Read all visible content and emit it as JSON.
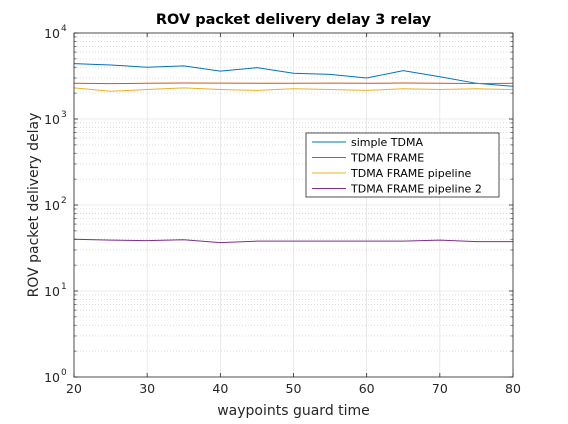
{
  "chart_data": {
    "type": "line",
    "title": "ROV packet delivery delay 3 relay",
    "xlabel": "waypoints guard time",
    "ylabel": "ROV packet delivery delay",
    "xlim": [
      20,
      80
    ],
    "ylim": [
      1,
      10000
    ],
    "y_scale": "log",
    "grid": true,
    "minor_grid": true,
    "legend_position": "right-center",
    "x_ticks": [
      20,
      30,
      40,
      50,
      60,
      70,
      80
    ],
    "y_ticks": [
      {
        "base": "10",
        "exp": "0",
        "value": 1
      },
      {
        "base": "10",
        "exp": "1",
        "value": 10
      },
      {
        "base": "10",
        "exp": "2",
        "value": 100
      },
      {
        "base": "10",
        "exp": "3",
        "value": 1000
      },
      {
        "base": "10",
        "exp": "4",
        "value": 10000
      }
    ],
    "x": [
      20,
      25,
      30,
      35,
      40,
      45,
      50,
      55,
      60,
      65,
      70,
      75,
      80
    ],
    "series": [
      {
        "name": "simple TDMA",
        "color": "#0072BD",
        "values": [
          4400,
          4250,
          4000,
          4150,
          3600,
          3950,
          3400,
          3300,
          3000,
          3650,
          3100,
          2600,
          2400
        ]
      },
      {
        "name": "TDMA FRAME",
        "color": "#D95319",
        "values": [
          2600,
          2580,
          2600,
          2620,
          2610,
          2600,
          2600,
          2610,
          2600,
          2620,
          2600,
          2590,
          2600
        ]
      },
      {
        "name": "TDMA FRAME pipeline",
        "color": "#EDB120",
        "values": [
          2300,
          2100,
          2200,
          2300,
          2200,
          2150,
          2250,
          2200,
          2150,
          2250,
          2200,
          2250,
          2200
        ]
      },
      {
        "name": "TDMA FRAME pipeline 2",
        "color": "#7E2F8E",
        "values": [
          40,
          39,
          38.5,
          39.5,
          36.5,
          38,
          38,
          38,
          38,
          38,
          39,
          37.5,
          37.5
        ]
      }
    ]
  }
}
